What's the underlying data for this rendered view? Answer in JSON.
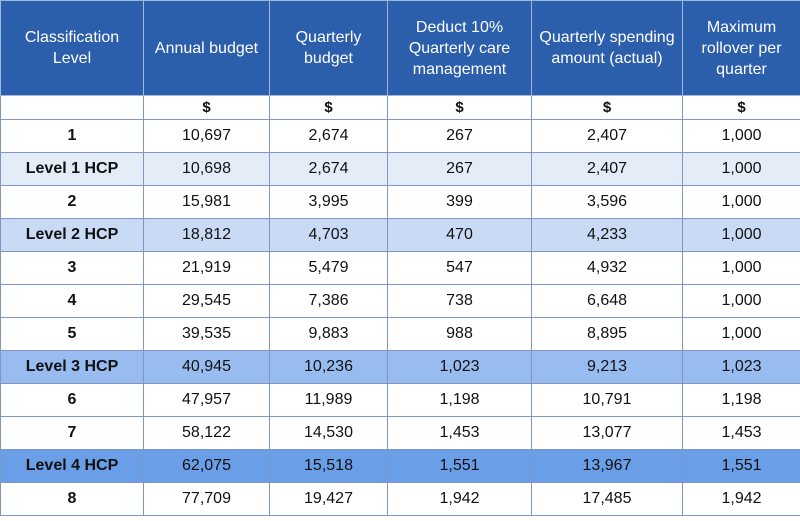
{
  "headers": [
    "Classification Level",
    "Annual budget",
    "Quarterly budget",
    "Deduct 10% Quarterly care management",
    "Quarterly spending amount (actual)",
    "Maximum rollover per quarter"
  ],
  "units": [
    "",
    "$",
    "$",
    "$",
    "$",
    "$"
  ],
  "rows": [
    {
      "level": "1",
      "annual": "10,697",
      "quarterly": "2,674",
      "deduct": "267",
      "spending": "2,407",
      "rollover": "1,000"
    },
    {
      "level": "Level 1 HCP",
      "annual": "10,698",
      "quarterly": "2,674",
      "deduct": "267",
      "spending": "2,407",
      "rollover": "1,000"
    },
    {
      "level": "2",
      "annual": "15,981",
      "quarterly": "3,995",
      "deduct": "399",
      "spending": "3,596",
      "rollover": "1,000"
    },
    {
      "level": "Level 2 HCP",
      "annual": "18,812",
      "quarterly": "4,703",
      "deduct": "470",
      "spending": "4,233",
      "rollover": "1,000"
    },
    {
      "level": "3",
      "annual": "21,919",
      "quarterly": "5,479",
      "deduct": "547",
      "spending": "4,932",
      "rollover": "1,000"
    },
    {
      "level": "4",
      "annual": "29,545",
      "quarterly": "7,386",
      "deduct": "738",
      "spending": "6,648",
      "rollover": "1,000"
    },
    {
      "level": "5",
      "annual": "39,535",
      "quarterly": "9,883",
      "deduct": "988",
      "spending": "8,895",
      "rollover": "1,000"
    },
    {
      "level": "Level 3 HCP",
      "annual": "40,945",
      "quarterly": "10,236",
      "deduct": "1,023",
      "spending": "9,213",
      "rollover": "1,023"
    },
    {
      "level": "6",
      "annual": "47,957",
      "quarterly": "11,989",
      "deduct": "1,198",
      "spending": "10,791",
      "rollover": "1,198"
    },
    {
      "level": "7",
      "annual": "58,122",
      "quarterly": "14,530",
      "deduct": "1,453",
      "spending": "13,077",
      "rollover": "1,453"
    },
    {
      "level": "Level 4 HCP",
      "annual": "62,075",
      "quarterly": "15,518",
      "deduct": "1,551",
      "spending": "13,967",
      "rollover": "1,551"
    },
    {
      "level": "8",
      "annual": "77,709",
      "quarterly": "19,427",
      "deduct": "1,942",
      "spending": "17,485",
      "rollover": "1,942"
    }
  ]
}
